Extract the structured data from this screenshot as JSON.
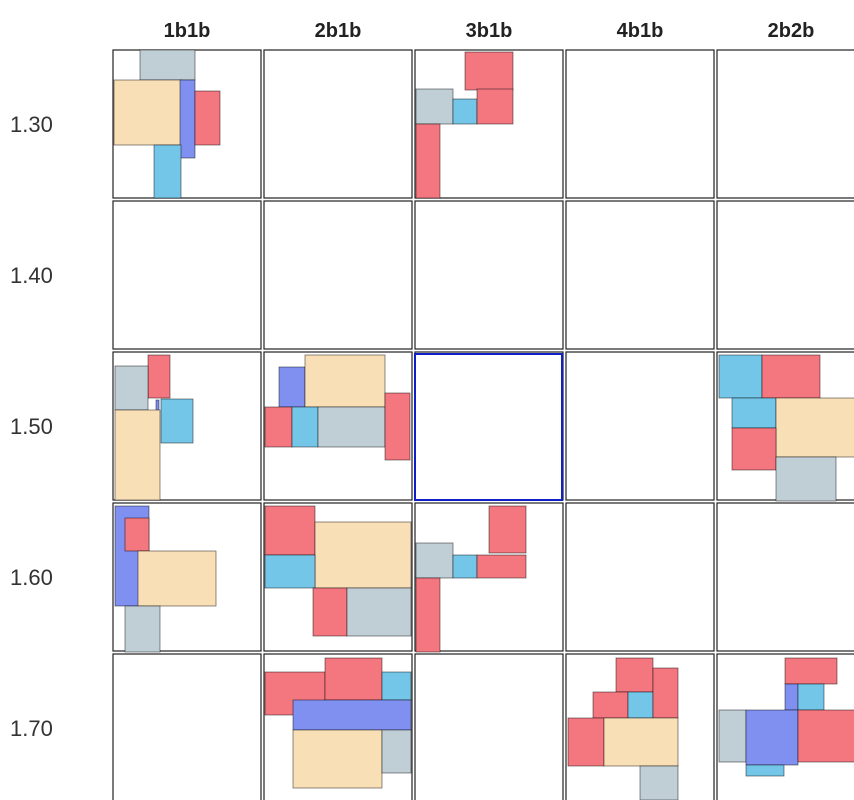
{
  "columns": [
    "1b1b",
    "2b1b",
    "3b1b",
    "4b1b",
    "2b2b"
  ],
  "rows": [
    "1.30",
    "1.40",
    "1.50",
    "1.60",
    "1.70"
  ]
}
